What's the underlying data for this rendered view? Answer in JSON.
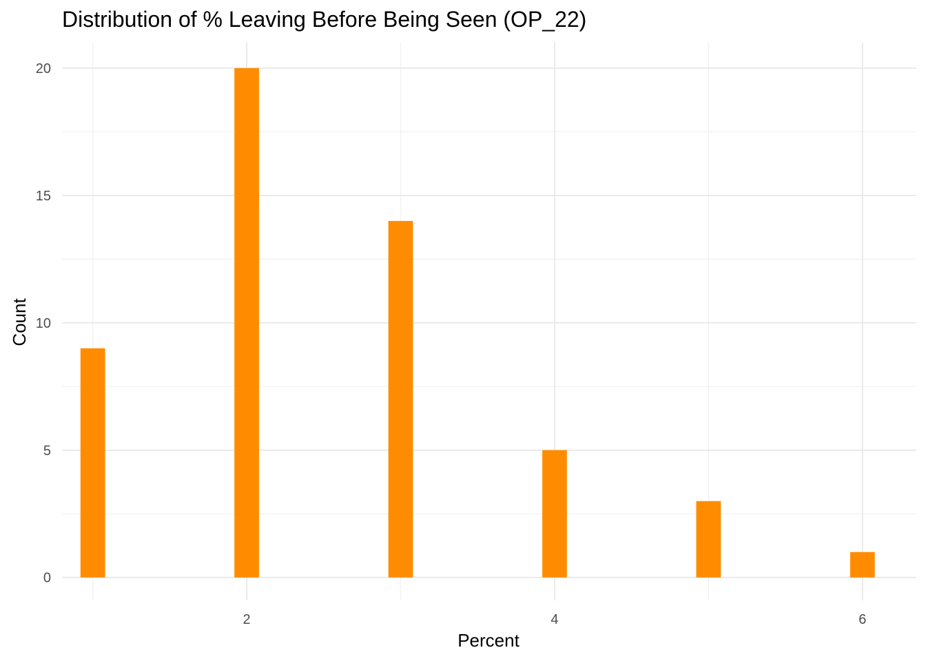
{
  "chart_data": {
    "type": "bar",
    "title": "Distribution of % Leaving Before Being Seen (OP_22)",
    "xlabel": "Percent",
    "ylabel": "Count",
    "bar_color": "#FF8C00",
    "grid": true,
    "xlim": [
      0.8,
      6.35
    ],
    "ylim": [
      -0.9,
      21.0
    ],
    "x_ticks": [
      2,
      4,
      6
    ],
    "y_ticks": [
      0,
      5,
      10,
      15,
      20
    ],
    "bins": [
      {
        "x": 1,
        "count": 9
      },
      {
        "x": 2,
        "count": 20
      },
      {
        "x": 3,
        "count": 14
      },
      {
        "x": 4,
        "count": 5
      },
      {
        "x": 5,
        "count": 3
      },
      {
        "x": 6,
        "count": 1
      }
    ],
    "bar_width": 0.16
  }
}
